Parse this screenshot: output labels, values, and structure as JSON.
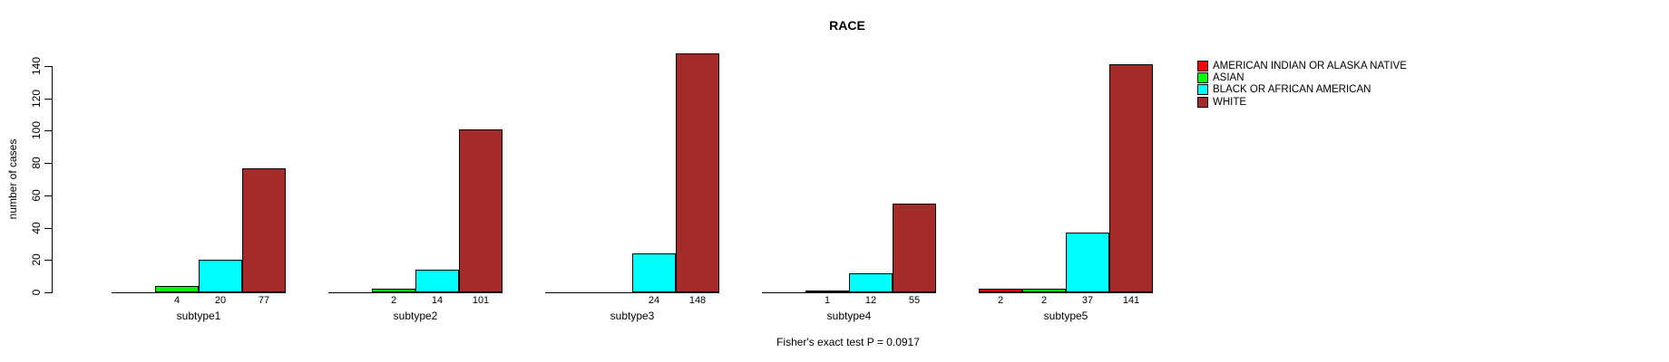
{
  "chart_data": {
    "type": "bar",
    "title": "RACE",
    "ylabel": "number of cases",
    "footer": "Fisher's exact test P = 0.0917",
    "categories": [
      "subtype1",
      "subtype2",
      "subtype3",
      "subtype4",
      "subtype5"
    ],
    "series": [
      {
        "name": "AMERICAN INDIAN OR ALASKA NATIVE",
        "color": "#FF0000",
        "values": [
          0,
          0,
          0,
          0,
          2
        ]
      },
      {
        "name": "ASIAN",
        "color": "#00FF00",
        "values": [
          4,
          2,
          0,
          1,
          2
        ]
      },
      {
        "name": "BLACK OR AFRICAN AMERICAN",
        "color": "#00FFFF",
        "values": [
          20,
          14,
          24,
          12,
          37
        ]
      },
      {
        "name": "WHITE",
        "color": "#A52A2A",
        "values": [
          77,
          101,
          148,
          55,
          141
        ]
      }
    ],
    "bar_value_labels": "shown under each bar when value > 0",
    "y_ticks": [
      0,
      20,
      40,
      60,
      80,
      100,
      120,
      140
    ],
    "ylim": [
      0,
      148
    ],
    "grid": false,
    "legend_position": "top-right",
    "colors": {
      "axis": "#000000",
      "background": "#FFFFFF"
    }
  }
}
